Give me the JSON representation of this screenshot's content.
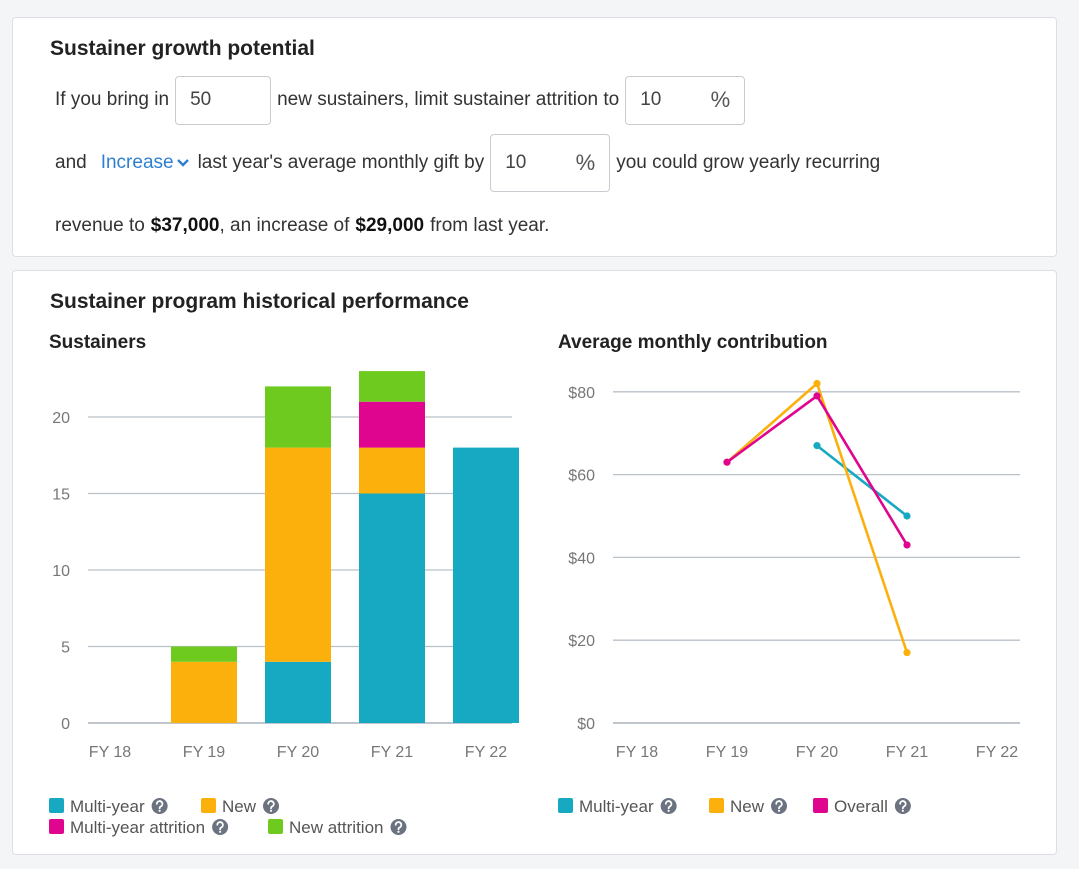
{
  "growth": {
    "title": "Sustainer growth potential",
    "text_1": "If you bring in",
    "new_sustainers": "50",
    "text_2": "new sustainers, limit sustainer attrition to",
    "attrition": "10",
    "percent_1": "%",
    "text_3": "and",
    "direction": "Increase",
    "text_4": "last year's average monthly gift by",
    "gift_increase": "10",
    "percent_2": "%",
    "text_5": "you could grow yearly recurring",
    "text_6": "revenue to",
    "revenue": "$37,000",
    "text_7": ", an increase of",
    "increase": "$29,000",
    "text_8": "from last year."
  },
  "history": {
    "title": "Sustainer program historical performance"
  },
  "chart_data": [
    {
      "type": "bar",
      "stacked": true,
      "title": "Sustainers",
      "categories": [
        "FY 18",
        "FY 19",
        "FY 20",
        "FY 21",
        "FY 22"
      ],
      "series": [
        {
          "name": "Multi-year",
          "color": "#17a9c1",
          "values": [
            0,
            0,
            4,
            15,
            18
          ]
        },
        {
          "name": "New",
          "color": "#fbb00b",
          "values": [
            0,
            4,
            14,
            3,
            0
          ]
        },
        {
          "name": "Multi-year attrition",
          "color": "#e0058f",
          "values": [
            0,
            0,
            0,
            3,
            0
          ]
        },
        {
          "name": "New attrition",
          "color": "#6fca1f",
          "values": [
            0,
            1,
            4,
            2,
            0
          ]
        }
      ],
      "ylim": [
        0,
        23
      ],
      "yticks": [
        0,
        5,
        10,
        15,
        20
      ],
      "grid": true
    },
    {
      "type": "line",
      "title": "Average monthly contribution",
      "categories": [
        "FY 18",
        "FY 19",
        "FY 20",
        "FY 21",
        "FY 22"
      ],
      "series": [
        {
          "name": "Multi-year",
          "color": "#17a9c1",
          "values": [
            null,
            null,
            67,
            50,
            null
          ]
        },
        {
          "name": "New",
          "color": "#fbb00b",
          "values": [
            null,
            63,
            82,
            17,
            null
          ]
        },
        {
          "name": "Overall",
          "color": "#e0058f",
          "values": [
            null,
            63,
            79,
            43,
            null
          ]
        }
      ],
      "ylim": [
        0,
        85
      ],
      "yticks": [
        {
          "value": 0,
          "label": "$0"
        },
        {
          "value": 20,
          "label": "$20"
        },
        {
          "value": 40,
          "label": "$40"
        },
        {
          "value": 60,
          "label": "$60"
        },
        {
          "value": 80,
          "label": "$80"
        }
      ],
      "grid": true
    }
  ]
}
